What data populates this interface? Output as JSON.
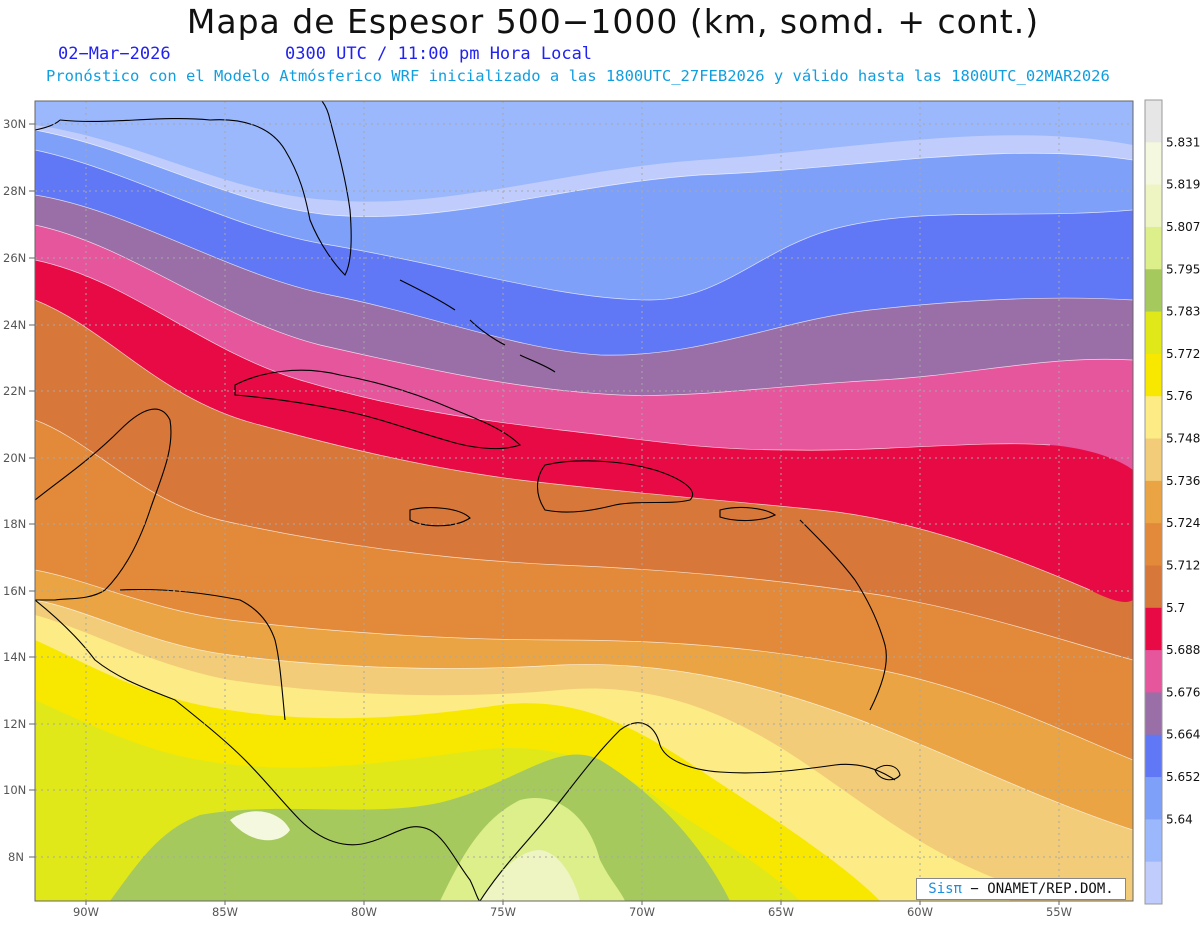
{
  "header": {
    "title": "Mapa de Espesor 500−1000 (km, somd. + cont.)",
    "date": "02−Mar−2026",
    "time": "0300 UTC / 11:00 pm Hora Local",
    "info": "Pronóstico con el Modelo Atmósferico WRF inicializado a las 1800UTC_27FEB2026 y válido hasta las  1800UTC_02MAR2026"
  },
  "map": {
    "lat_ticks": [
      "30N",
      "28N",
      "26N",
      "24N",
      "22N",
      "20N",
      "18N",
      "16N",
      "14N",
      "12N",
      "10N",
      "8N"
    ],
    "lon_ticks": [
      "90W",
      "85W",
      "80W",
      "75W",
      "70W",
      "65W",
      "60W",
      "55W"
    ],
    "colorbar": [
      {
        "label": "",
        "color": "#e6e6e6"
      },
      {
        "label": "5.831",
        "color": "#f4f8de"
      },
      {
        "label": "5.819",
        "color": "#eef4c2"
      },
      {
        "label": "5.807",
        "color": "#dcef8a"
      },
      {
        "label": "5.795",
        "color": "#a6c95e"
      },
      {
        "label": "5.783",
        "color": "#e0e81a"
      },
      {
        "label": "5.772",
        "color": "#f8e800"
      },
      {
        "label": "5.76",
        "color": "#fdeb85"
      },
      {
        "label": "5.748",
        "color": "#f2cc78"
      },
      {
        "label": "5.736",
        "color": "#eaa444"
      },
      {
        "label": "5.724",
        "color": "#e38a3a"
      },
      {
        "label": "5.712",
        "color": "#d8773a"
      },
      {
        "label": "5.7",
        "color": "#e80a45"
      },
      {
        "label": "5.688",
        "color": "#e5569d"
      },
      {
        "label": "5.676",
        "color": "#9a6fa8"
      },
      {
        "label": "5.664",
        "color": "#6078f5"
      },
      {
        "label": "5.652",
        "color": "#7fa0f8"
      },
      {
        "label": "5.64",
        "color": "#9ab8fb"
      },
      {
        "label": "",
        "color": "#c0ccfb"
      }
    ]
  },
  "credit": {
    "brand": "Sisπ",
    "text": "− ONAMET/REP.DOM."
  }
}
